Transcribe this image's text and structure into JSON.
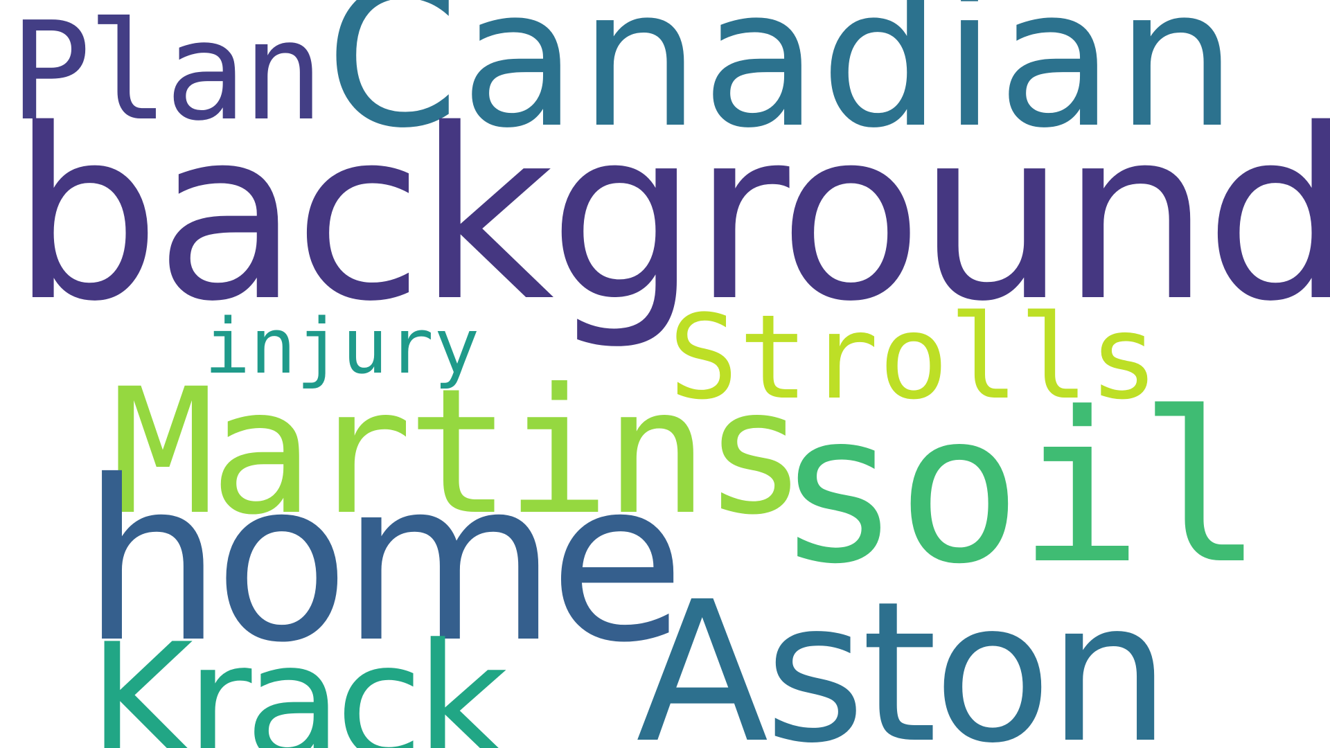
{
  "word_cloud": {
    "background_color": "#ffffff",
    "words": [
      {
        "text": "Plan",
        "color": "#433e85"
      },
      {
        "text": "Canadian",
        "color": "#2c728e"
      },
      {
        "text": "background",
        "color": "#453781"
      },
      {
        "text": "injury",
        "color": "#1f9a8a"
      },
      {
        "text": "Strolls",
        "color": "#bddf26"
      },
      {
        "text": "Martins",
        "color": "#95d840"
      },
      {
        "text": "soil",
        "color": "#3fbc73"
      },
      {
        "text": "home",
        "color": "#355f8d"
      },
      {
        "text": "Aston",
        "color": "#2d708e"
      },
      {
        "text": "Krack",
        "color": "#21a685"
      }
    ]
  }
}
